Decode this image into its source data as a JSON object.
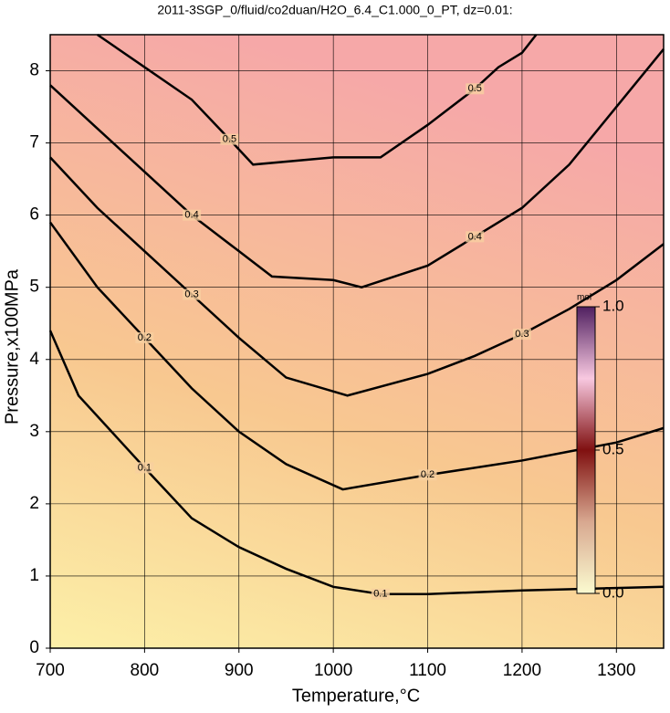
{
  "chart_data": {
    "type": "contour",
    "title": "2011-3SGP_0/fluid/co2duan/H2O_6.4_C1.000_0_PT, dz=0.01:",
    "xlabel": "Temperature,°C",
    "ylabel": "Pressure,x100MPa",
    "xlim": [
      700,
      1350
    ],
    "ylim": [
      0,
      8.5
    ],
    "xticks": [
      700,
      800,
      900,
      1000,
      1100,
      1200,
      1300
    ],
    "yticks": [
      0,
      1,
      2,
      3,
      4,
      5,
      6,
      7,
      8
    ],
    "grid": true,
    "color": "#000000",
    "contours": [
      {
        "level": 0.5,
        "x": [
          750,
          800,
          850,
          890,
          915,
          1000,
          1050,
          1100,
          1150,
          1175,
          1200,
          1215
        ],
        "y": [
          8.5,
          8.05,
          7.6,
          7.05,
          6.7,
          6.8,
          6.8,
          7.25,
          7.75,
          8.05,
          8.25,
          8.5
        ]
      },
      {
        "level": 0.4,
        "x": [
          700,
          750,
          800,
          850,
          900,
          935,
          1000,
          1030,
          1100,
          1150,
          1200,
          1250,
          1300,
          1350
        ],
        "y": [
          7.8,
          7.2,
          6.6,
          6.0,
          5.5,
          5.15,
          5.1,
          5.0,
          5.3,
          5.7,
          6.1,
          6.7,
          7.5,
          8.3
        ]
      },
      {
        "level": 0.3,
        "x": [
          700,
          750,
          800,
          850,
          900,
          950,
          1015,
          1100,
          1150,
          1200,
          1250,
          1300,
          1350
        ],
        "y": [
          6.8,
          6.1,
          5.5,
          4.9,
          4.3,
          3.75,
          3.5,
          3.8,
          4.05,
          4.35,
          4.7,
          5.1,
          5.6
        ]
      },
      {
        "level": 0.2,
        "x": [
          700,
          750,
          800,
          850,
          900,
          950,
          1010,
          1100,
          1200,
          1300,
          1350
        ],
        "y": [
          5.9,
          5.0,
          4.3,
          3.6,
          3.0,
          2.55,
          2.2,
          2.4,
          2.6,
          2.85,
          3.05
        ]
      },
      {
        "level": 0.1,
        "x": [
          700,
          730,
          800,
          850,
          900,
          950,
          1000,
          1050,
          1100,
          1200,
          1350
        ],
        "y": [
          4.4,
          3.5,
          2.5,
          1.8,
          1.4,
          1.1,
          0.85,
          0.75,
          0.75,
          0.8,
          0.85
        ]
      }
    ],
    "colorbar": {
      "label": "mol",
      "lim": [
        0,
        1
      ],
      "ticks": [
        {
          "value": 0,
          "label": "0.0"
        },
        0.5,
        {
          "value": 1,
          "label": "1.0"
        }
      ]
    }
  }
}
